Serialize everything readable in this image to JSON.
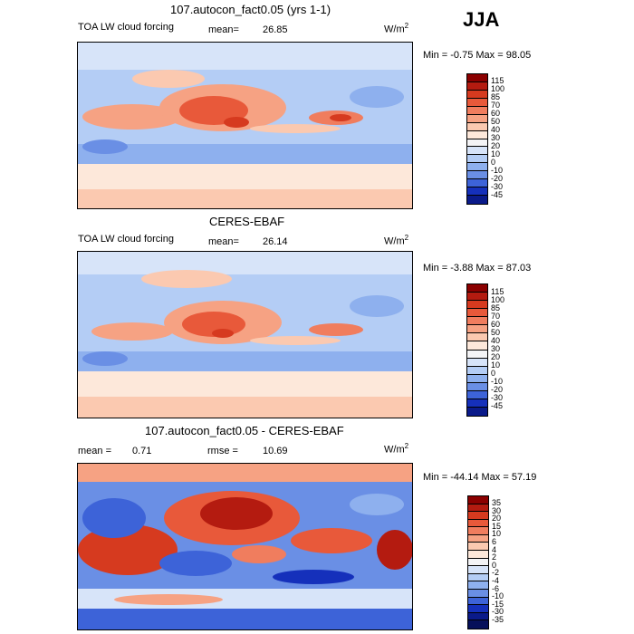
{
  "season": "JJA",
  "panels": [
    {
      "title": "107.autocon_fact0.05 (yrs 1-1)",
      "left_label": "TOA LW cloud forcing",
      "stat_label": "mean=",
      "stat_value": "26.85",
      "units_base": "W/m",
      "units_exp": "2",
      "minmax": "Min =  -0.75 Max =  98.05",
      "colorbar_labels": [
        "115",
        "100",
        "85",
        "70",
        "60",
        "50",
        "40",
        "30",
        "20",
        "10",
        "0",
        "-10",
        "-20",
        "-30",
        "-45"
      ],
      "colors": [
        "#8b0000",
        "#b41b10",
        "#d63a1f",
        "#e8593a",
        "#f07d5e",
        "#f6a283",
        "#fbc9b0",
        "#fde8da",
        "#f4f4f6",
        "#d7e4f9",
        "#b4cdf5",
        "#8eb0ee",
        "#6a8fe5",
        "#3d63d8",
        "#1530bb",
        "#0a1a8a"
      ],
      "mid_color": "#fde8da"
    },
    {
      "title": "CERES-EBAF",
      "left_label": "TOA LW cloud forcing",
      "stat_label": "mean=",
      "stat_value": "26.14",
      "units_base": "W/m",
      "units_exp": "2",
      "minmax": "Min =  -3.88 Max =  87.03",
      "colorbar_labels": [
        "115",
        "100",
        "85",
        "70",
        "60",
        "50",
        "40",
        "30",
        "20",
        "10",
        "0",
        "-10",
        "-20",
        "-30",
        "-45"
      ],
      "colors": [
        "#8b0000",
        "#b41b10",
        "#d63a1f",
        "#e8593a",
        "#f07d5e",
        "#f6a283",
        "#fbc9b0",
        "#fde8da",
        "#f4f4f6",
        "#d7e4f9",
        "#b4cdf5",
        "#8eb0ee",
        "#6a8fe5",
        "#3d63d8",
        "#1530bb",
        "#0a1a8a"
      ],
      "mid_color": "#fde8da"
    },
    {
      "title": "107.autocon_fact0.05 - CERES-EBAF",
      "left_label": "",
      "stat_label": "mean =",
      "stat_value": "0.71",
      "stat2_label": "rmse =",
      "stat2_value": "10.69",
      "units_base": "W/m",
      "units_exp": "2",
      "minmax": "Min = -44.14 Max =  57.19",
      "colorbar_labels": [
        "35",
        "30",
        "20",
        "15",
        "10",
        "6",
        "4",
        "2",
        "0",
        "-2",
        "-4",
        "-6",
        "-10",
        "-15",
        "-30",
        "-35"
      ],
      "colors": [
        "#8b0000",
        "#b41b10",
        "#d63a1f",
        "#e8593a",
        "#f07d5e",
        "#f6a283",
        "#fbc9b0",
        "#fde8da",
        "#f4f4f6",
        "#d7e4f9",
        "#b4cdf5",
        "#8eb0ee",
        "#6a8fe5",
        "#3d63d8",
        "#1530bb",
        "#0a1a8a",
        "#06105a"
      ],
      "mid_color": "#f4f4f6"
    }
  ]
}
